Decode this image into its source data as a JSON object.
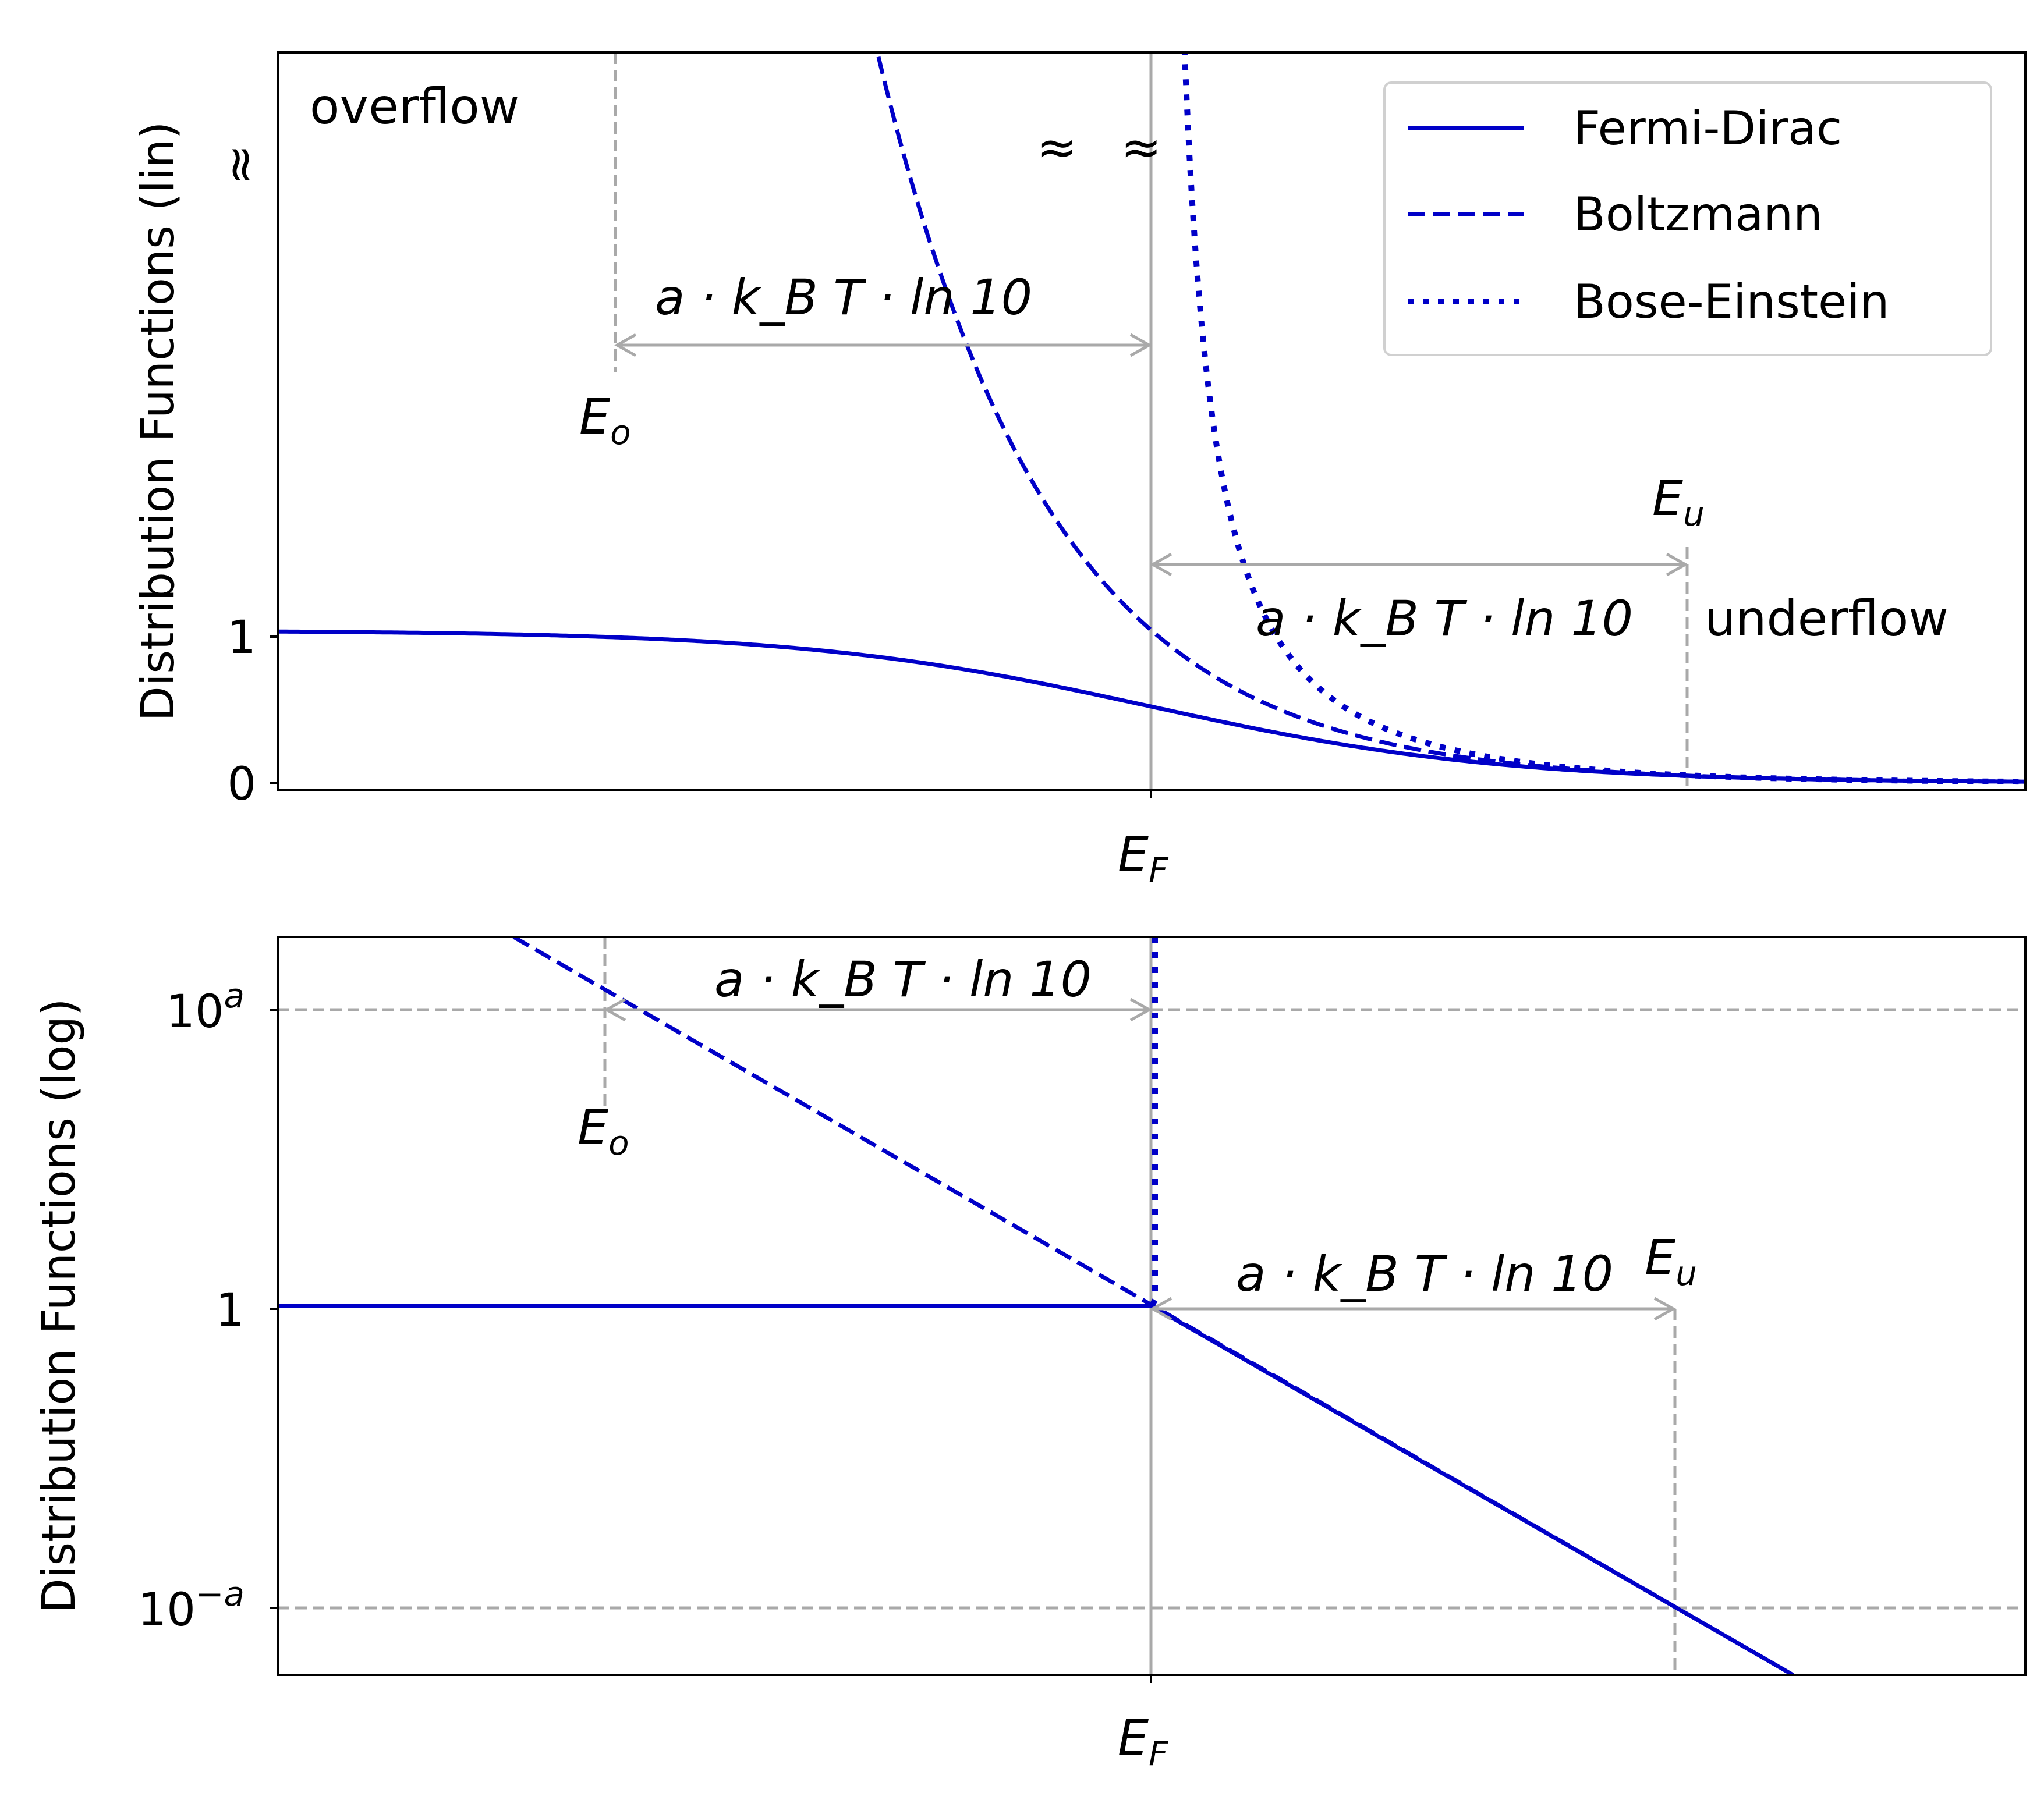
{
  "colors": {
    "series": "#0000c8",
    "guide": "#a9a9a9",
    "axes": "#000000"
  },
  "chart_data": [
    {
      "type": "line",
      "yscale": "linear",
      "ylabel": "Distribution Functions (lin)",
      "xtick_label": {
        "main": "E",
        "sub": "F"
      },
      "yticks": [
        {
          "value": 0,
          "label": "0"
        },
        {
          "value": 1,
          "label": "1"
        }
      ],
      "ylim": [
        -0.05,
        4.8
      ],
      "xlim": [
        -5,
        5
      ],
      "legend": {
        "position": "top-right",
        "entries": [
          "Fermi-Dirac",
          "Boltzmann",
          "Bose-Einstein"
        ]
      },
      "series": [
        {
          "name": "Fermi-Dirac",
          "style": "solid",
          "formula": "1/(exp(x)+1)",
          "x_range": [
            -5,
            5
          ]
        },
        {
          "name": "Boltzmann",
          "style": "dashed",
          "formula": "exp(-x)",
          "x_range": [
            -5,
            5
          ]
        },
        {
          "name": "Bose-Einstein",
          "style": "dotted",
          "formula": "1/(exp(x)-1)",
          "x_range": [
            0.05,
            5
          ]
        }
      ],
      "break_marks": [
        "≈",
        "≈",
        "≈"
      ],
      "annotations": {
        "overflow": "overflow",
        "underflow": "underflow",
        "span_text": "a · k_B T · ln 10",
        "e_o": {
          "main": "E",
          "sub": "o"
        },
        "e_u": {
          "main": "E",
          "sub": "u"
        }
      }
    },
    {
      "type": "line",
      "yscale": "log",
      "ylabel": "Distribution Functions (log)",
      "xtick_label": {
        "main": "E",
        "sub": "F"
      },
      "yticks": [
        {
          "value": 1,
          "base": "10",
          "exp": "a"
        },
        {
          "value": 0,
          "label": "1"
        },
        {
          "value": -1,
          "base": "10",
          "exp": "−a"
        }
      ],
      "ylim": [
        -1.24,
        1.24
      ],
      "xlim": [
        -5,
        5
      ],
      "series": [
        {
          "name": "Fermi-Dirac",
          "style": "solid",
          "points": [
            [
              -5,
              0
            ],
            [
              0,
              0
            ],
            [
              3.67,
              -1.24
            ]
          ]
        },
        {
          "name": "Boltzmann",
          "style": "dashed",
          "points": [
            [
              -3.65,
              1.24
            ],
            [
              3.67,
              -1.24
            ]
          ]
        },
        {
          "name": "Bose-Einstein",
          "style": "dotted",
          "points": [
            [
              0.02,
              1.24
            ],
            [
              0.02,
              0.02
            ],
            [
              0,
              0
            ]
          ]
        }
      ],
      "guide_lines": {
        "horizontal": [
          1,
          -1
        ],
        "vertical": [
          -3.1,
          0,
          3.0
        ]
      },
      "annotations": {
        "span_text": "a · k_B T · ln 10",
        "e_o": {
          "main": "E",
          "sub": "o"
        },
        "e_u": {
          "main": "E",
          "sub": "u"
        }
      }
    }
  ]
}
